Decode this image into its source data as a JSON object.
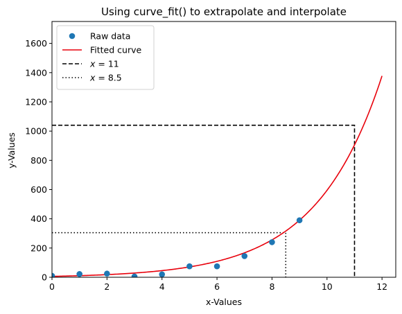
{
  "chart_data": {
    "type": "scatter",
    "title": "Using curve_fit() to extrapolate and interpolate",
    "xlabel": "x-Values",
    "ylabel": "y-Values",
    "xlim": [
      0,
      12.5
    ],
    "ylim": [
      0,
      1750
    ],
    "xticks": [
      0,
      2,
      4,
      6,
      8,
      10,
      12
    ],
    "yticks": [
      0,
      200,
      400,
      600,
      800,
      1000,
      1200,
      1400,
      1600
    ],
    "grid": false,
    "legend_position": "top-left",
    "series": [
      {
        "name": "Raw data",
        "kind": "scatter",
        "color": "#1f77b4",
        "x": [
          0,
          1,
          2,
          3,
          4,
          5,
          6,
          7,
          8,
          9
        ],
        "y": [
          10,
          22,
          25,
          5,
          20,
          75,
          75,
          145,
          240,
          390
        ]
      },
      {
        "name": "Fitted curve",
        "kind": "line",
        "color": "#e8000b",
        "model": "y = a * exp(b * x) + c",
        "params": {
          "a": 9.1,
          "b": 0.4185,
          "c": -3
        },
        "x_range": [
          0,
          12
        ]
      },
      {
        "name": "$x = 11$",
        "legend_label": "x = 11",
        "kind": "reference",
        "style": "dashed",
        "color": "#000000",
        "x": 11,
        "y": 1040
      },
      {
        "name": "$x = 8.5$",
        "legend_label": "x = 8.5",
        "kind": "reference",
        "style": "dotted",
        "color": "#000000",
        "x": 8.5,
        "y": 305
      }
    ]
  }
}
